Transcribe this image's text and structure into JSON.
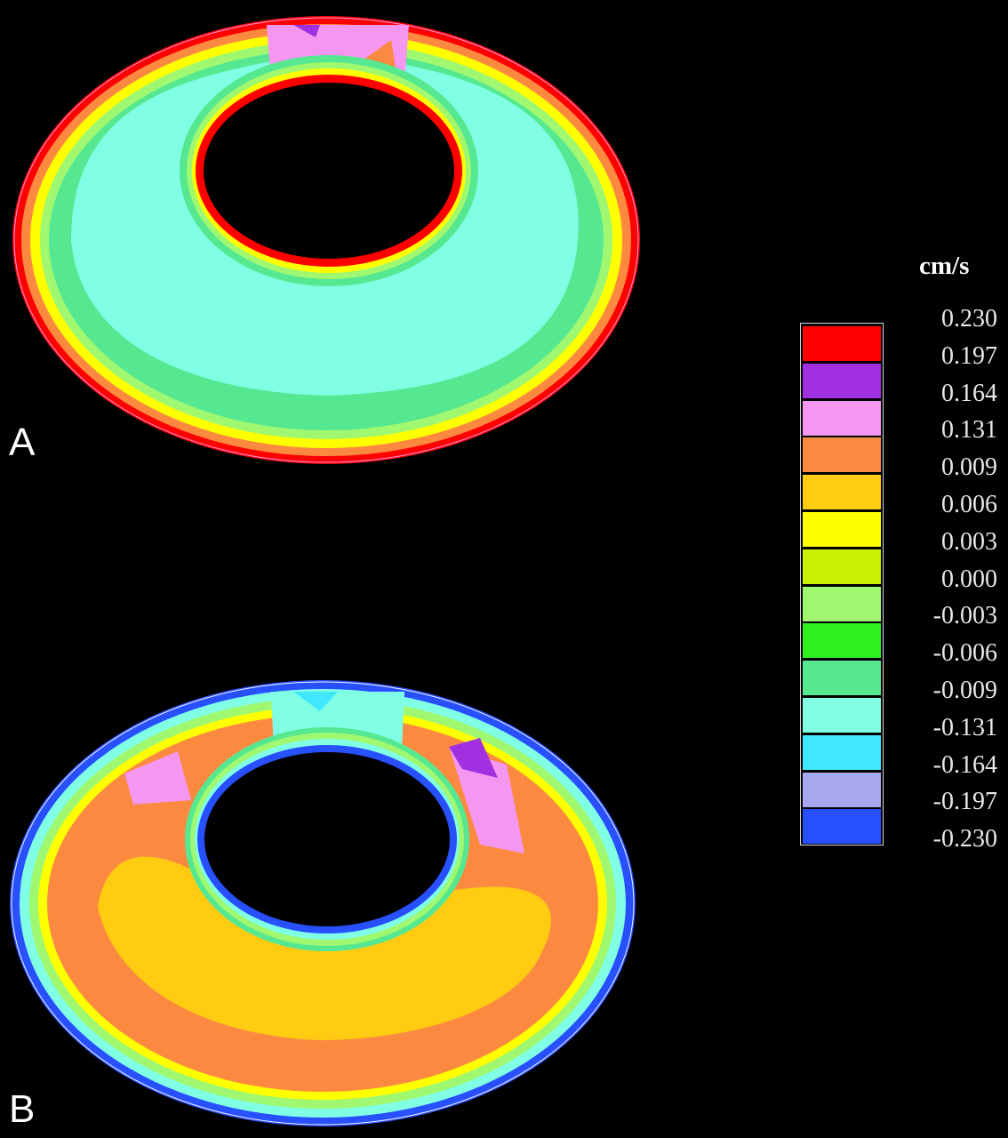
{
  "panels": {
    "a_label": "A",
    "b_label": "B"
  },
  "legend": {
    "unit": "cm/s",
    "tick_labels": [
      "0.230",
      "0.197",
      "0.164",
      "0.131",
      "0.009",
      "0.006",
      "0.003",
      "0.000",
      "-0.003",
      "-0.006",
      "-0.009",
      "-0.131",
      "-0.164",
      "-0.197",
      "-0.230"
    ],
    "colors": [
      "#ff0000",
      "#a030e0",
      "#f597f0",
      "#fb8a40",
      "#ffcc12",
      "#ffff00",
      "#c8f000",
      "#9ff870",
      "#30f020",
      "#55e890",
      "#80ffe4",
      "#40e8ff",
      "#a8a8f0",
      "#2850ff"
    ]
  },
  "colors": {
    "background": "#000000",
    "text": "#ffffff"
  }
}
